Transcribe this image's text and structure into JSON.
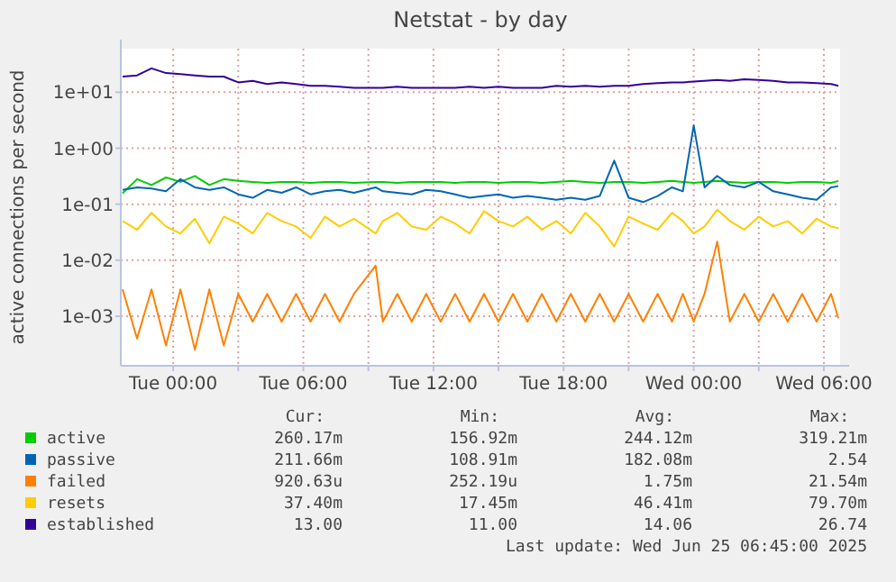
{
  "chart_data": {
    "type": "line",
    "title": "Netstat - by day",
    "ylabel": "active connections per second",
    "log": true,
    "grid": true,
    "legend": "bottom",
    "line_style": "solid",
    "marker": "none",
    "ylim": [
      0.00013,
      60
    ],
    "yticks": [
      {
        "value": 10,
        "label": "1e+01"
      },
      {
        "value": 1,
        "label": "1e+00"
      },
      {
        "value": 0.1,
        "label": "1e-01"
      },
      {
        "value": 0.01,
        "label": "1e-02"
      },
      {
        "value": 0.001,
        "label": "1e-03"
      }
    ],
    "xlim": [
      "2025-06-23T21:35",
      "2025-06-25T06:45"
    ],
    "xticks": [
      {
        "value": "2025-06-24T00:00",
        "label": "Tue 00:00"
      },
      {
        "value": "2025-06-24T03:00",
        "label": null
      },
      {
        "value": "2025-06-24T06:00",
        "label": "Tue 06:00"
      },
      {
        "value": "2025-06-24T09:00",
        "label": null
      },
      {
        "value": "2025-06-24T12:00",
        "label": "Tue 12:00"
      },
      {
        "value": "2025-06-24T15:00",
        "label": null
      },
      {
        "value": "2025-06-24T18:00",
        "label": "Tue 18:00"
      },
      {
        "value": "2025-06-24T21:00",
        "label": null
      },
      {
        "value": "2025-06-25T00:00",
        "label": "Wed 00:00"
      },
      {
        "value": "2025-06-25T03:00",
        "label": null
      },
      {
        "value": "2025-06-25T06:00",
        "label": "Wed 06:00"
      }
    ],
    "x": [
      "2025-06-23T21:40",
      "2025-06-23T22:20",
      "2025-06-23T23:00",
      "2025-06-23T23:40",
      "2025-06-24T00:20",
      "2025-06-24T01:00",
      "2025-06-24T01:40",
      "2025-06-24T02:20",
      "2025-06-24T03:00",
      "2025-06-24T03:40",
      "2025-06-24T04:20",
      "2025-06-24T05:00",
      "2025-06-24T05:40",
      "2025-06-24T06:20",
      "2025-06-24T07:00",
      "2025-06-24T07:40",
      "2025-06-24T08:20",
      "2025-06-24T09:20",
      "2025-06-24T09:40",
      "2025-06-24T10:20",
      "2025-06-24T11:00",
      "2025-06-24T11:40",
      "2025-06-24T12:20",
      "2025-06-24T13:00",
      "2025-06-24T13:40",
      "2025-06-24T14:20",
      "2025-06-24T15:00",
      "2025-06-24T15:40",
      "2025-06-24T16:20",
      "2025-06-24T17:00",
      "2025-06-24T17:40",
      "2025-06-24T18:20",
      "2025-06-24T19:00",
      "2025-06-24T19:40",
      "2025-06-24T20:20",
      "2025-06-24T21:00",
      "2025-06-24T21:40",
      "2025-06-24T22:20",
      "2025-06-24T23:00",
      "2025-06-24T23:30",
      "2025-06-25T00:00",
      "2025-06-25T00:30",
      "2025-06-25T01:05",
      "2025-06-25T01:40",
      "2025-06-25T02:20",
      "2025-06-25T03:00",
      "2025-06-25T03:40",
      "2025-06-25T04:20",
      "2025-06-25T05:00",
      "2025-06-25T05:40",
      "2025-06-25T06:20",
      "2025-06-25T06:40"
    ],
    "series": [
      {
        "name": "active",
        "color": "#00cc00",
        "values": [
          0.157,
          0.28,
          0.22,
          0.3,
          0.25,
          0.319,
          0.22,
          0.28,
          0.26,
          0.25,
          0.24,
          0.25,
          0.25,
          0.24,
          0.25,
          0.25,
          0.24,
          0.25,
          0.25,
          0.24,
          0.25,
          0.25,
          0.25,
          0.24,
          0.25,
          0.25,
          0.24,
          0.25,
          0.25,
          0.24,
          0.25,
          0.26,
          0.25,
          0.24,
          0.25,
          0.25,
          0.24,
          0.25,
          0.26,
          0.25,
          0.24,
          0.25,
          0.26,
          0.25,
          0.24,
          0.25,
          0.25,
          0.24,
          0.25,
          0.25,
          0.24,
          0.26
        ]
      },
      {
        "name": "passive",
        "color": "#0066b3",
        "values": [
          0.18,
          0.2,
          0.19,
          0.17,
          0.28,
          0.2,
          0.18,
          0.2,
          0.15,
          0.13,
          0.18,
          0.16,
          0.2,
          0.15,
          0.17,
          0.18,
          0.16,
          0.2,
          0.17,
          0.16,
          0.15,
          0.18,
          0.17,
          0.15,
          0.13,
          0.14,
          0.15,
          0.13,
          0.14,
          0.13,
          0.12,
          0.13,
          0.12,
          0.14,
          0.6,
          0.13,
          0.109,
          0.14,
          0.2,
          0.17,
          2.54,
          0.2,
          0.32,
          0.22,
          0.2,
          0.25,
          0.17,
          0.15,
          0.13,
          0.12,
          0.2,
          0.21
        ]
      },
      {
        "name": "failed",
        "color": "#ff8000",
        "values": [
          0.003,
          0.0004,
          0.003,
          0.0003,
          0.003,
          0.000252,
          0.003,
          0.0003,
          0.0025,
          0.0008,
          0.0025,
          0.0008,
          0.0025,
          0.0008,
          0.0025,
          0.0008,
          0.0025,
          0.008,
          0.0008,
          0.0025,
          0.0008,
          0.0025,
          0.0008,
          0.0025,
          0.0008,
          0.0025,
          0.0008,
          0.0025,
          0.0008,
          0.0025,
          0.0008,
          0.0025,
          0.0008,
          0.0025,
          0.0008,
          0.0025,
          0.0008,
          0.0025,
          0.0008,
          0.0025,
          0.0008,
          0.0025,
          0.0215,
          0.0008,
          0.0025,
          0.0008,
          0.0025,
          0.0008,
          0.0025,
          0.0008,
          0.0025,
          0.00092
        ]
      },
      {
        "name": "resets",
        "color": "#ffcc00",
        "values": [
          0.05,
          0.035,
          0.07,
          0.04,
          0.03,
          0.055,
          0.02,
          0.06,
          0.045,
          0.03,
          0.07,
          0.05,
          0.04,
          0.025,
          0.06,
          0.04,
          0.055,
          0.03,
          0.05,
          0.07,
          0.04,
          0.035,
          0.06,
          0.045,
          0.03,
          0.075,
          0.05,
          0.04,
          0.06,
          0.035,
          0.05,
          0.03,
          0.07,
          0.04,
          0.0175,
          0.06,
          0.045,
          0.035,
          0.07,
          0.05,
          0.03,
          0.04,
          0.0797,
          0.05,
          0.035,
          0.06,
          0.04,
          0.05,
          0.03,
          0.055,
          0.04,
          0.0374
        ]
      },
      {
        "name": "established",
        "color": "#330099",
        "values": [
          19,
          20,
          26.7,
          22,
          21,
          20,
          19,
          19,
          15,
          16,
          14,
          15,
          14,
          13,
          13,
          12.5,
          12,
          12,
          12,
          12.5,
          12,
          12,
          12,
          12,
          12.5,
          12,
          12.5,
          12,
          12,
          12,
          13,
          12.5,
          13,
          12.5,
          13,
          13,
          14,
          14.5,
          15,
          15,
          15.5,
          16,
          16.5,
          16,
          17,
          16.5,
          16,
          15,
          15,
          14.5,
          14,
          13
        ]
      }
    ],
    "annotations": [
      "Cur:",
      "Min:",
      "Avg:",
      "Max:",
      "260.17m",
      "156.92m",
      "244.12m",
      "319.21m",
      "211.66m",
      "108.91m",
      "182.08m",
      "2.54",
      "920.63u",
      "252.19u",
      "1.75m",
      "21.54m",
      "37.40m",
      "17.45m",
      "46.41m",
      "79.70m",
      "13.00",
      "11.00",
      "14.06",
      "26.74",
      "Last update: Wed Jun 25 06:45:00 2025"
    ]
  }
}
